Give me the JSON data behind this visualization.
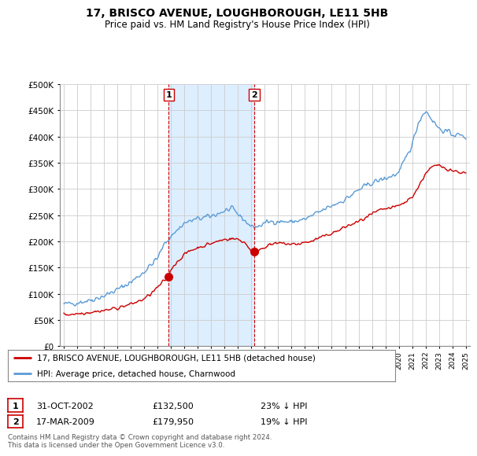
{
  "title": "17, BRISCO AVENUE, LOUGHBOROUGH, LE11 5HB",
  "subtitle": "Price paid vs. HM Land Registry's House Price Index (HPI)",
  "legend_label_red": "17, BRISCO AVENUE, LOUGHBOROUGH, LE11 5HB (detached house)",
  "legend_label_blue": "HPI: Average price, detached house, Charnwood",
  "annotation1_label": "1",
  "annotation1_date": "31-OCT-2002",
  "annotation1_price": "£132,500",
  "annotation1_pct": "23% ↓ HPI",
  "annotation2_label": "2",
  "annotation2_date": "17-MAR-2009",
  "annotation2_price": "£179,950",
  "annotation2_pct": "19% ↓ HPI",
  "footer": "Contains HM Land Registry data © Crown copyright and database right 2024.\nThis data is licensed under the Open Government Licence v3.0.",
  "red_color": "#cc0000",
  "blue_color": "#5b9bd5",
  "shade_color": "#ddeeff",
  "background_color": "#ffffff",
  "vline1_x": 2002.83,
  "vline2_x": 2009.21,
  "marker1_x": 2002.83,
  "marker1_y": 132500,
  "marker2_x": 2009.21,
  "marker2_y": 179950,
  "ylim": [
    0,
    500000
  ],
  "xlim": [
    1994.7,
    2025.3
  ]
}
